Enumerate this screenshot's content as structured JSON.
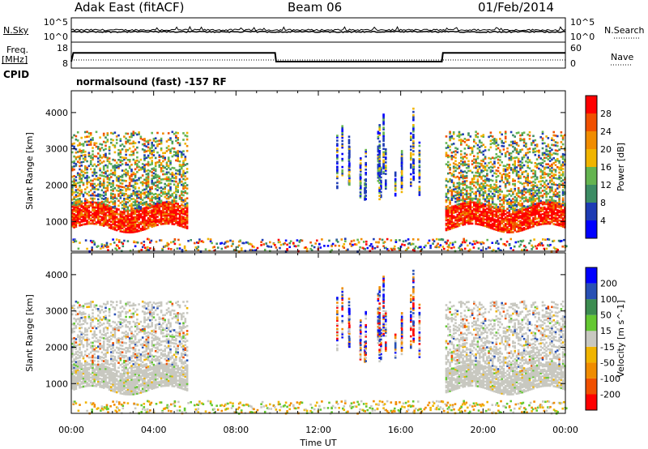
{
  "header": {
    "title": "Adak East (fitACF)",
    "beam": "Beam 06",
    "date": "01/Feb/2014"
  },
  "top_panels": {
    "nsky_label": "N.Sky",
    "nsearch_label": "N.Search",
    "freq_label": "Freq.",
    "freq_unit": "[MHz]",
    "nave_label": "Nave",
    "cpid_label": "CPID",
    "mode_text": "normalsound (fast) -157 RF",
    "noise_ticks_left": [
      "10^5",
      "10^0"
    ],
    "noise_ticks_right": [
      "10^5",
      "10^0"
    ],
    "freq_ticks": [
      "18",
      "8"
    ],
    "nave_ticks": [
      "60",
      "0"
    ]
  },
  "time_axis": {
    "label": "Time UT",
    "ticks": [
      "00:00",
      "04:00",
      "08:00",
      "12:00",
      "16:00",
      "20:00",
      "00:00"
    ]
  },
  "colors": {
    "power_scale": [
      "#0000ff",
      "#1e3cb4",
      "#3c8c64",
      "#64b450",
      "#f0b400",
      "#f08c00",
      "#f05000",
      "#ff0000"
    ],
    "velocity_scale": [
      "#ff0000",
      "#f05000",
      "#f08c00",
      "#f0b400",
      "#c8c8c0",
      "#64c832",
      "#3c8c50",
      "#2850b4",
      "#0000ff"
    ],
    "ground_scatter": "#c8c8c0"
  },
  "chart_data": [
    {
      "type": "heatmap",
      "parameter": "Power",
      "xlabel": "",
      "ylabel": "Slant Range [km]",
      "ylim": [
        180,
        4600
      ],
      "yticks": [
        "1000",
        "2000",
        "3000",
        "4000"
      ],
      "colorbar_label": "Power [dB]",
      "colorbar_ticks": [
        "4",
        "8",
        "12",
        "16",
        "20",
        "24",
        "28"
      ],
      "colorbar_range": [
        0,
        32
      ],
      "scatter_regions": [
        {
          "time_start": "00:00",
          "time_end": "05:40",
          "range_km": [
            800,
            1500
          ],
          "dominant_power_db": 28
        },
        {
          "time_start": "00:00",
          "time_end": "05:40",
          "range_km": [
            1500,
            3500
          ],
          "dominant_power_db": 14
        },
        {
          "time_start": "18:10",
          "time_end": "24:00",
          "range_km": [
            800,
            1500
          ],
          "dominant_power_db": 28
        },
        {
          "time_start": "18:10",
          "time_end": "24:00",
          "range_km": [
            1500,
            3500
          ],
          "dominant_power_db": 14
        },
        {
          "time_start": "12:30",
          "time_end": "17:00",
          "range_km": [
            1600,
            3600
          ],
          "dominant_power_db": 8
        }
      ]
    },
    {
      "type": "heatmap",
      "parameter": "Velocity",
      "xlabel": "Time UT",
      "ylabel": "Slant Range [km]",
      "ylim": [
        180,
        4600
      ],
      "yticks": [
        "1000",
        "2000",
        "3000",
        "4000"
      ],
      "colorbar_label": "Velocity [m s^-1]",
      "colorbar_ticks": [
        "200",
        "100",
        "50",
        "15",
        "-15",
        "-50",
        "-100",
        "-200"
      ],
      "colorbar_range": [
        -250,
        250
      ],
      "scatter_regions": [
        {
          "time_start": "00:00",
          "time_end": "05:40",
          "range_km": [
            800,
            3300
          ],
          "dominant": "ground scatter"
        },
        {
          "time_start": "18:10",
          "time_end": "24:00",
          "range_km": [
            800,
            3300
          ],
          "dominant": "ground scatter"
        },
        {
          "time_start": "12:30",
          "time_end": "17:00",
          "range_km": [
            1600,
            3600
          ],
          "dominant_velocity_ms": -100
        }
      ]
    }
  ],
  "frequency_series": {
    "time_hours": [
      0,
      0.1,
      9.9,
      9.95,
      18.0,
      18.05,
      24
    ],
    "freq_mhz": [
      10.5,
      15.0,
      15.0,
      10.5,
      10.5,
      15.0,
      15.0
    ]
  }
}
